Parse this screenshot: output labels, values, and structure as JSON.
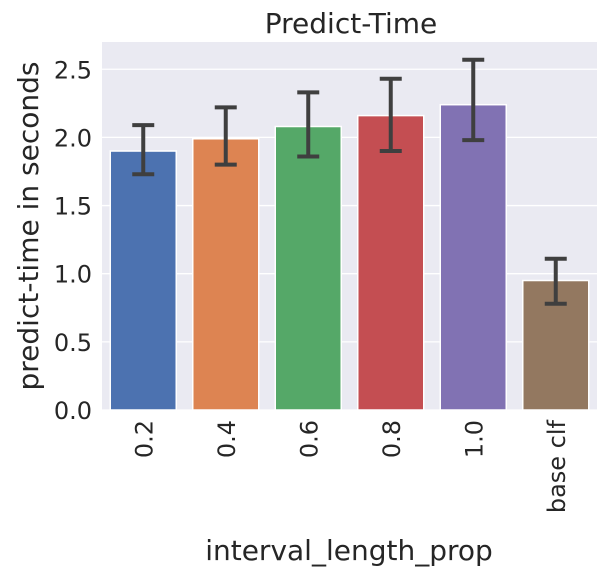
{
  "chart_data": {
    "type": "bar",
    "title": "Predict-Time",
    "xlabel": "interval_length_prop",
    "ylabel": "predict-time in seconds",
    "categories": [
      "0.2",
      "0.4",
      "0.6",
      "0.8",
      "1.0",
      "base clf"
    ],
    "values": [
      1.9,
      1.99,
      2.08,
      2.16,
      2.24,
      0.95
    ],
    "error_low": [
      1.73,
      1.8,
      1.86,
      1.9,
      1.98,
      0.78
    ],
    "error_high": [
      2.09,
      2.22,
      2.33,
      2.43,
      2.57,
      1.11
    ],
    "ylim": [
      0,
      2.7
    ],
    "yticks": [
      "0.0",
      "0.5",
      "1.0",
      "1.5",
      "2.0",
      "2.5"
    ],
    "ytick_values": [
      0,
      0.5,
      1.0,
      1.5,
      2.0,
      2.5
    ],
    "grid": true,
    "legend": "none",
    "colors": [
      "#4c72b0",
      "#dd8452",
      "#55a868",
      "#c44e52",
      "#8172b3",
      "#937860"
    ],
    "background_color": "#eaeaf2",
    "errorbar_color": "#3f3f3f"
  }
}
